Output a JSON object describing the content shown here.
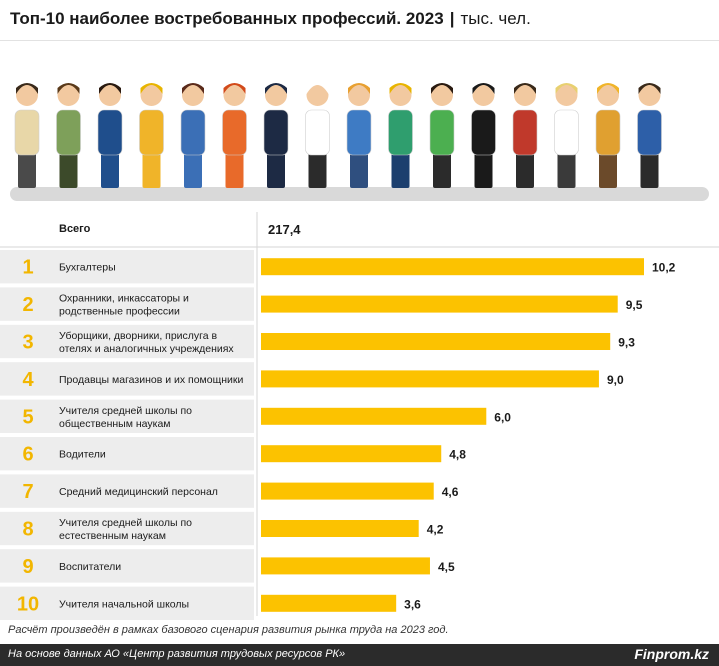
{
  "header": {
    "title": "Топ-10 наиболее востребованных профессий. 2023",
    "separator": "|",
    "unit": "тыс. чел."
  },
  "illustration": {
    "icon": "professions-people-illustration",
    "description_colors": {
      "floor": "#d9d9d9"
    }
  },
  "chart_data": {
    "type": "bar",
    "orientation": "horizontal",
    "total": {
      "label": "Всего",
      "value": "217,4"
    },
    "categories": [
      "Бухгалтеры",
      "Охранники, инкассаторы и родственные профессии",
      "Уборщики, дворники, прислуга в отелях и аналогичных учреждениях",
      "Продавцы магазинов и их помощники",
      "Учителя средней школы по общественным наукам",
      "Водители",
      "Средний медицинский персонал",
      "Учителя средней школы по естественным наукам",
      "Воспитатели",
      "Учителя начальной школы"
    ],
    "label_lines": [
      [
        "Бухгалтеры"
      ],
      [
        "Охранники, инкассаторы и",
        "родственные профессии"
      ],
      [
        "Уборщики, дворники, прислуга в",
        "отелях и аналогичных учреждениях"
      ],
      [
        "Продавцы магазинов и их помощники"
      ],
      [
        "Учителя средней школы по",
        "общественным наукам"
      ],
      [
        "Водители"
      ],
      [
        "Средний медицинский персонал"
      ],
      [
        "Учителя средней школы по",
        "естественным наукам"
      ],
      [
        "Воспитатели"
      ],
      [
        "Учителя начальной школы"
      ]
    ],
    "ranks": [
      "1",
      "2",
      "3",
      "4",
      "5",
      "6",
      "7",
      "8",
      "9",
      "10"
    ],
    "values": [
      10.2,
      9.5,
      9.3,
      9.0,
      6.0,
      4.8,
      4.6,
      4.2,
      4.5,
      3.6
    ],
    "value_labels": [
      "10,2",
      "9,5",
      "9,3",
      "9,0",
      "6,0",
      "4,8",
      "4,6",
      "4,2",
      "4,5",
      "3,6"
    ],
    "xlim": [
      0,
      10.2
    ],
    "colors": {
      "bar": "#fcc200",
      "rank": "#f2b600",
      "row_band": "#ededed"
    },
    "grid": false,
    "legend": "none"
  },
  "note": "Расчёт произведён в рамках базового сценария развития рынка труда на 2023 год.",
  "footer": {
    "source": "На основе данных АО «Центр развития трудовых ресурсов РК»",
    "brand": "Finprom.kz",
    "background": "#2b2b2b"
  }
}
